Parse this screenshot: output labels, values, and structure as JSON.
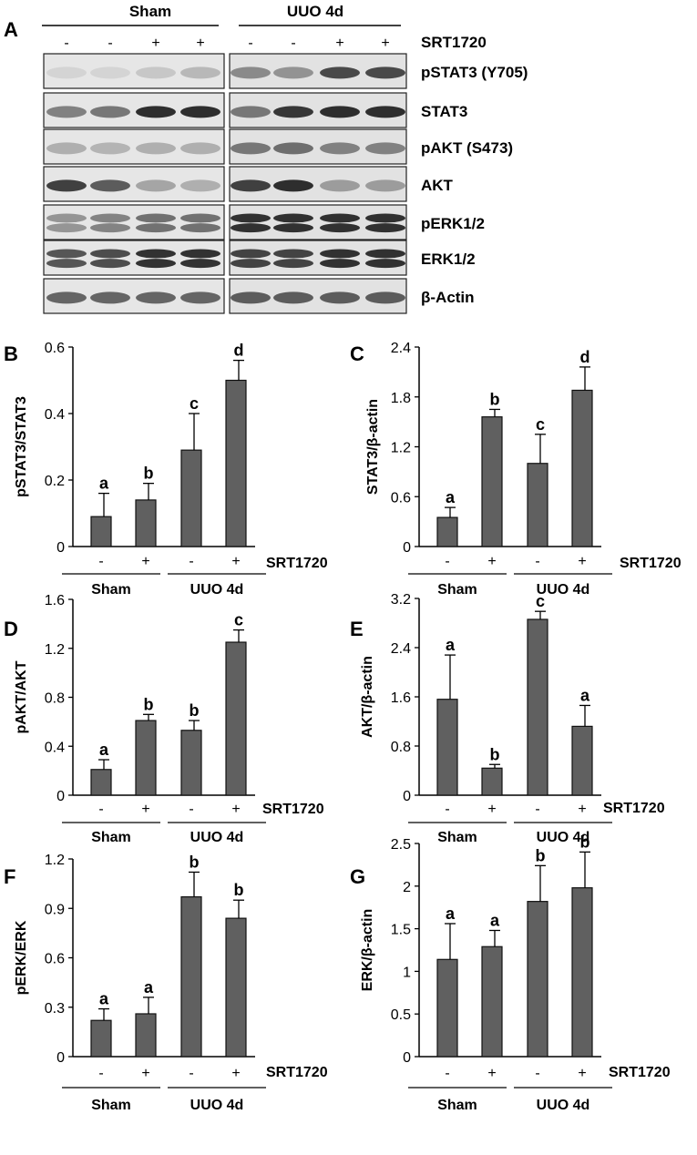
{
  "blot": {
    "letter": "A",
    "groups": [
      "Sham",
      "UUO 4d"
    ],
    "treatment_label": "SRT1720",
    "treatment_signs": [
      "-",
      "-",
      "+",
      "+",
      "-",
      "-",
      "+",
      "+"
    ],
    "rows": [
      {
        "label": "pSTAT3 (Y705)",
        "intensity": [
          0.05,
          0.05,
          0.12,
          0.2,
          0.45,
          0.4,
          0.8,
          0.8
        ]
      },
      {
        "label": "STAT3",
        "intensity": [
          0.5,
          0.55,
          0.95,
          0.95,
          0.55,
          0.9,
          0.95,
          0.95
        ]
      },
      {
        "label": "pAKT (S473)",
        "intensity": [
          0.25,
          0.22,
          0.25,
          0.25,
          0.55,
          0.6,
          0.5,
          0.5
        ]
      },
      {
        "label": "AKT",
        "intensity": [
          0.85,
          0.7,
          0.3,
          0.25,
          0.85,
          0.95,
          0.35,
          0.35
        ]
      },
      {
        "label": "pERK1/2",
        "intensity": [
          0.4,
          0.5,
          0.6,
          0.6,
          0.95,
          0.95,
          0.95,
          0.95
        ]
      },
      {
        "label": "ERK1/2",
        "intensity": [
          0.75,
          0.8,
          0.95,
          0.95,
          0.85,
          0.85,
          0.95,
          0.95
        ]
      },
      {
        "label": "β-Actin",
        "intensity": [
          0.65,
          0.65,
          0.65,
          0.65,
          0.7,
          0.7,
          0.7,
          0.7
        ]
      }
    ]
  },
  "chart_data": [
    {
      "letter": "B",
      "type": "bar",
      "ylabel": "pSTAT3/STAT3",
      "ylim": [
        0,
        0.6
      ],
      "yticks": [
        "0",
        "0.2",
        "0.4",
        "0.6"
      ],
      "signs": [
        "-",
        "+",
        "-",
        "+"
      ],
      "groups": [
        "Sham",
        "UUO 4d"
      ],
      "treatment_label": "SRT1720",
      "values": [
        0.09,
        0.14,
        0.29,
        0.5
      ],
      "errors": [
        0.07,
        0.05,
        0.11,
        0.06
      ],
      "labels": [
        "a",
        "b",
        "c",
        "d"
      ]
    },
    {
      "letter": "C",
      "type": "bar",
      "ylabel": "STAT3/β-actin",
      "ylim": [
        0,
        2.4
      ],
      "yticks": [
        "0",
        "0.6",
        "1.2",
        "1.8",
        "2.4"
      ],
      "signs": [
        "-",
        "+",
        "-",
        "+"
      ],
      "groups": [
        "Sham",
        "UUO 4d"
      ],
      "treatment_label": "SRT1720",
      "values": [
        0.35,
        1.56,
        1.0,
        1.88
      ],
      "errors": [
        0.12,
        0.09,
        0.35,
        0.28
      ],
      "labels": [
        "a",
        "b",
        "c",
        "d"
      ]
    },
    {
      "letter": "D",
      "type": "bar",
      "ylabel": "pAKT/AKT",
      "ylim": [
        0,
        1.6
      ],
      "yticks": [
        "0",
        "0.4",
        "0.8",
        "1.2",
        "1.6"
      ],
      "signs": [
        "-",
        "+",
        "-",
        "+"
      ],
      "groups": [
        "Sham",
        "UUO 4d"
      ],
      "treatment_label": "SRT1720",
      "values": [
        0.21,
        0.61,
        0.53,
        1.25
      ],
      "errors": [
        0.08,
        0.05,
        0.08,
        0.1
      ],
      "labels": [
        "a",
        "b",
        "b",
        "c"
      ]
    },
    {
      "letter": "E",
      "type": "bar",
      "ylabel": "AKT/β-actin",
      "ylim": [
        0,
        3.2
      ],
      "yticks": [
        "0",
        "0.8",
        "1.6",
        "2.4",
        "3.2"
      ],
      "signs": [
        "-",
        "+",
        "-",
        "+"
      ],
      "groups": [
        "Sham",
        "UUO 4d"
      ],
      "treatment_label": "SRT1720",
      "values": [
        1.56,
        0.44,
        2.86,
        1.12
      ],
      "errors": [
        0.72,
        0.06,
        0.13,
        0.34
      ],
      "labels": [
        "a",
        "b",
        "c",
        "a"
      ]
    },
    {
      "letter": "F",
      "type": "bar",
      "ylabel": "pERK/ERK",
      "ylim": [
        0,
        1.2
      ],
      "yticks": [
        "0",
        "0.3",
        "0.6",
        "0.9",
        "1.2"
      ],
      "signs": [
        "-",
        "+",
        "-",
        "+"
      ],
      "groups": [
        "Sham",
        "UUO 4d"
      ],
      "treatment_label": "SRT1720",
      "values": [
        0.22,
        0.26,
        0.97,
        0.84
      ],
      "errors": [
        0.07,
        0.1,
        0.15,
        0.11
      ],
      "labels": [
        "a",
        "a",
        "b",
        "b"
      ]
    },
    {
      "letter": "G",
      "type": "bar",
      "ylabel": "ERK/β-actin",
      "ylim": [
        0,
        2.5
      ],
      "yticks": [
        "0",
        "0.5",
        "1",
        "1.5",
        "2",
        "2.5"
      ],
      "signs": [
        "-",
        "+",
        "-",
        "+"
      ],
      "groups": [
        "Sham",
        "UUO 4d"
      ],
      "treatment_label": "SRT1720",
      "values": [
        1.14,
        1.29,
        1.82,
        1.98
      ],
      "errors": [
        0.42,
        0.19,
        0.42,
        0.42
      ],
      "labels": [
        "a",
        "a",
        "b",
        "b"
      ]
    }
  ]
}
